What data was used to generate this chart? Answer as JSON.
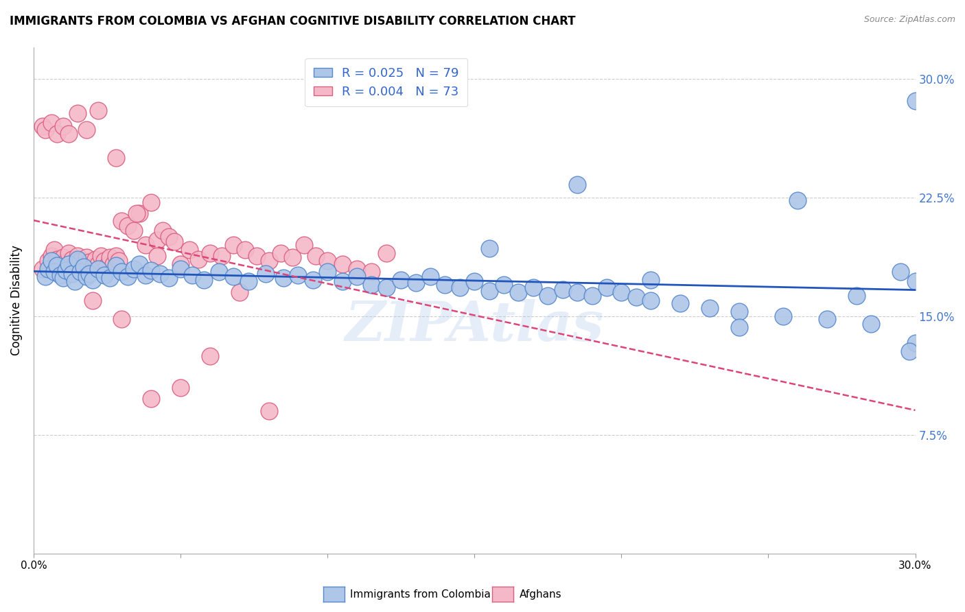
{
  "title": "IMMIGRANTS FROM COLOMBIA VS AFGHAN COGNITIVE DISABILITY CORRELATION CHART",
  "source": "Source: ZipAtlas.com",
  "ylabel": "Cognitive Disability",
  "x_min": 0.0,
  "x_max": 0.3,
  "y_min": 0.0,
  "y_max": 0.32,
  "x_ticks": [
    0.0,
    0.05,
    0.1,
    0.15,
    0.2,
    0.25,
    0.3
  ],
  "x_tick_labels": [
    "0.0%",
    "",
    "",
    "",
    "",
    "",
    "30.0%"
  ],
  "y_ticks": [
    0.0,
    0.075,
    0.15,
    0.225,
    0.3
  ],
  "y_tick_labels": [
    "",
    "7.5%",
    "15.0%",
    "22.5%",
    "30.0%"
  ],
  "grid_color": "#cccccc",
  "colombia_color": "#aec6e8",
  "colombia_edge_color": "#5588cc",
  "afghan_color": "#f4b8c8",
  "afghan_edge_color": "#d96080",
  "colombia_R": "0.025",
  "colombia_N": "79",
  "afghan_R": "0.004",
  "afghan_N": "73",
  "trend_colombia_color": "#2255bb",
  "trend_afghan_color": "#dd4477",
  "watermark": "ZIPAtlas",
  "legend_label_colombia": "Immigrants from Colombia",
  "legend_label_afghan": "Afghans",
  "colombia_x": [
    0.004,
    0.005,
    0.006,
    0.007,
    0.008,
    0.009,
    0.01,
    0.011,
    0.012,
    0.013,
    0.014,
    0.015,
    0.016,
    0.017,
    0.018,
    0.019,
    0.02,
    0.022,
    0.024,
    0.026,
    0.028,
    0.03,
    0.032,
    0.034,
    0.036,
    0.038,
    0.04,
    0.043,
    0.046,
    0.05,
    0.054,
    0.058,
    0.063,
    0.068,
    0.073,
    0.079,
    0.085,
    0.09,
    0.095,
    0.1,
    0.105,
    0.11,
    0.115,
    0.12,
    0.125,
    0.13,
    0.135,
    0.14,
    0.145,
    0.15,
    0.155,
    0.16,
    0.165,
    0.17,
    0.175,
    0.18,
    0.185,
    0.19,
    0.195,
    0.2,
    0.205,
    0.21,
    0.22,
    0.23,
    0.24,
    0.255,
    0.27,
    0.285,
    0.295,
    0.3,
    0.3,
    0.3,
    0.298,
    0.155,
    0.185,
    0.21,
    0.24,
    0.26,
    0.28
  ],
  "colombia_y": [
    0.175,
    0.18,
    0.185,
    0.178,
    0.182,
    0.176,
    0.174,
    0.179,
    0.183,
    0.177,
    0.172,
    0.186,
    0.178,
    0.181,
    0.175,
    0.177,
    0.173,
    0.18,
    0.176,
    0.174,
    0.182,
    0.178,
    0.175,
    0.18,
    0.183,
    0.176,
    0.179,
    0.177,
    0.174,
    0.18,
    0.176,
    0.173,
    0.178,
    0.175,
    0.172,
    0.177,
    0.174,
    0.176,
    0.173,
    0.178,
    0.172,
    0.175,
    0.17,
    0.168,
    0.173,
    0.171,
    0.175,
    0.17,
    0.168,
    0.172,
    0.166,
    0.17,
    0.165,
    0.168,
    0.163,
    0.167,
    0.165,
    0.163,
    0.168,
    0.165,
    0.162,
    0.16,
    0.158,
    0.155,
    0.153,
    0.15,
    0.148,
    0.145,
    0.178,
    0.286,
    0.172,
    0.133,
    0.128,
    0.193,
    0.233,
    0.173,
    0.143,
    0.223,
    0.163
  ],
  "afghan_x": [
    0.003,
    0.005,
    0.006,
    0.007,
    0.008,
    0.009,
    0.01,
    0.011,
    0.012,
    0.013,
    0.014,
    0.015,
    0.016,
    0.017,
    0.018,
    0.019,
    0.02,
    0.021,
    0.022,
    0.023,
    0.024,
    0.025,
    0.026,
    0.027,
    0.028,
    0.029,
    0.03,
    0.032,
    0.034,
    0.036,
    0.038,
    0.04,
    0.042,
    0.044,
    0.046,
    0.048,
    0.05,
    0.053,
    0.056,
    0.06,
    0.064,
    0.068,
    0.072,
    0.076,
    0.08,
    0.084,
    0.088,
    0.092,
    0.096,
    0.1,
    0.105,
    0.11,
    0.115,
    0.12,
    0.003,
    0.004,
    0.006,
    0.008,
    0.01,
    0.012,
    0.015,
    0.018,
    0.022,
    0.028,
    0.035,
    0.042,
    0.05,
    0.06,
    0.07,
    0.08,
    0.02,
    0.03,
    0.04
  ],
  "afghan_y": [
    0.18,
    0.185,
    0.188,
    0.192,
    0.186,
    0.183,
    0.187,
    0.184,
    0.19,
    0.186,
    0.183,
    0.188,
    0.185,
    0.182,
    0.187,
    0.184,
    0.181,
    0.186,
    0.183,
    0.188,
    0.185,
    0.182,
    0.187,
    0.183,
    0.188,
    0.185,
    0.21,
    0.207,
    0.204,
    0.215,
    0.195,
    0.222,
    0.198,
    0.204,
    0.2,
    0.197,
    0.183,
    0.192,
    0.186,
    0.19,
    0.188,
    0.195,
    0.192,
    0.188,
    0.185,
    0.19,
    0.187,
    0.195,
    0.188,
    0.185,
    0.183,
    0.18,
    0.178,
    0.19,
    0.27,
    0.268,
    0.272,
    0.265,
    0.27,
    0.265,
    0.278,
    0.268,
    0.28,
    0.25,
    0.215,
    0.188,
    0.105,
    0.125,
    0.165,
    0.09,
    0.16,
    0.148,
    0.098
  ]
}
